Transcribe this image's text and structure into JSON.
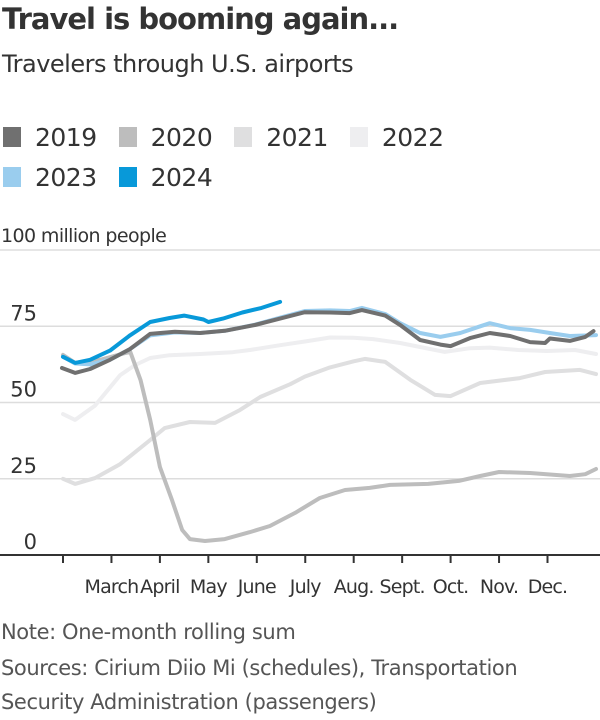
{
  "title": "Travel is booming again...",
  "subtitle": "Travelers through U.S. airports",
  "legend": [
    {
      "label": "2019",
      "color": "#707070"
    },
    {
      "label": "2020",
      "color": "#bdbdbd"
    },
    {
      "label": "2021",
      "color": "#dfdfe0"
    },
    {
      "label": "2022",
      "color": "#eeeef0"
    },
    {
      "label": "2023",
      "color": "#9acdee"
    },
    {
      "label": "2024",
      "color": "#0899d9"
    }
  ],
  "unit_label": "100 million people",
  "note": "Note: One-month rolling sum",
  "sources_line1": "Sources: Cirium Diio Mi (schedules), Transportation",
  "sources_line2": "Security Administration (passengers)",
  "chart_data": {
    "type": "line",
    "title": "Travel is booming again...",
    "subtitle": "Travelers through U.S. airports",
    "ylabel": "100 million people",
    "xlabel": "",
    "ylim": [
      0,
      100
    ],
    "yticks": [
      0,
      25,
      50,
      75,
      100
    ],
    "ytick_labels": [
      "0",
      "25",
      "50",
      "75",
      "100 million people"
    ],
    "x_unit": "month of year (2 = Feb 1, 13 = end of Dec)",
    "xlim": [
      2,
      13
    ],
    "xticks": [
      2,
      3,
      4,
      5,
      6,
      7,
      8,
      9,
      10,
      11,
      12
    ],
    "xtick_labels": [
      "",
      "March",
      "April",
      "May",
      "June",
      "July",
      "Aug.",
      "Sept.",
      "Oct.",
      "Nov.",
      "Dec."
    ],
    "grid": true,
    "legend_position": "top-left",
    "series": [
      {
        "name": "2022",
        "color": "#eeeef0",
        "points": [
          [
            2.0,
            46.2
          ],
          [
            2.25,
            44.3
          ],
          [
            2.66,
            49
          ],
          [
            3.18,
            59
          ],
          [
            3.49,
            62.3
          ],
          [
            3.8,
            64.6
          ],
          [
            4.2,
            65.5
          ],
          [
            4.83,
            65.9
          ],
          [
            5.5,
            66.5
          ],
          [
            5.86,
            67.2
          ],
          [
            6.48,
            68.8
          ],
          [
            6.99,
            70
          ],
          [
            7.51,
            71.3
          ],
          [
            8.0,
            71.2
          ],
          [
            8.4,
            70.8
          ],
          [
            8.96,
            69.5
          ],
          [
            9.37,
            68.2
          ],
          [
            9.88,
            66.6
          ],
          [
            10.4,
            67.8
          ],
          [
            10.81,
            68
          ],
          [
            11.4,
            67.2
          ],
          [
            11.99,
            66.9
          ],
          [
            12.57,
            67.2
          ],
          [
            13.0,
            65.9
          ]
        ]
      },
      {
        "name": "2021",
        "color": "#dfdfe0",
        "points": [
          [
            2.0,
            25
          ],
          [
            2.25,
            23.3
          ],
          [
            2.66,
            25.2
          ],
          [
            3.18,
            29.8
          ],
          [
            3.8,
            37.7
          ],
          [
            4.1,
            41.6
          ],
          [
            4.62,
            43.6
          ],
          [
            5.14,
            43.3
          ],
          [
            5.65,
            47.5
          ],
          [
            6.07,
            51.8
          ],
          [
            6.69,
            56
          ],
          [
            6.99,
            58.5
          ],
          [
            7.51,
            61.5
          ],
          [
            8.0,
            63.5
          ],
          [
            8.23,
            64.3
          ],
          [
            8.65,
            63.3
          ],
          [
            9.17,
            57.4
          ],
          [
            9.68,
            52.5
          ],
          [
            10.0,
            52.1
          ],
          [
            10.61,
            56.4
          ],
          [
            11.43,
            58
          ],
          [
            11.95,
            60
          ],
          [
            12.67,
            60.7
          ],
          [
            13.0,
            59.3
          ]
        ]
      },
      {
        "name": "2020",
        "color": "#bdbdbd",
        "points": [
          [
            2.0,
            65.6
          ],
          [
            2.25,
            63
          ],
          [
            2.77,
            64
          ],
          [
            3.28,
            66.2
          ],
          [
            3.39,
            66.6
          ],
          [
            3.6,
            57.4
          ],
          [
            3.8,
            44.3
          ],
          [
            4.0,
            28.9
          ],
          [
            4.25,
            18
          ],
          [
            4.46,
            8.2
          ],
          [
            4.62,
            5.2
          ],
          [
            4.93,
            4.6
          ],
          [
            5.34,
            5.2
          ],
          [
            5.86,
            7.5
          ],
          [
            6.27,
            9.5
          ],
          [
            6.79,
            13.8
          ],
          [
            7.3,
            18.7
          ],
          [
            7.82,
            21.3
          ],
          [
            8.33,
            22
          ],
          [
            8.75,
            23
          ],
          [
            9.54,
            23.3
          ],
          [
            10.17,
            24.3
          ],
          [
            10.61,
            25.9
          ],
          [
            11.0,
            27.2
          ],
          [
            11.64,
            26.9
          ],
          [
            12.46,
            25.9
          ],
          [
            12.78,
            26.5
          ],
          [
            13.0,
            28.2
          ]
        ]
      },
      {
        "name": "2023",
        "color": "#9acdee",
        "points": [
          [
            2.0,
            65
          ],
          [
            2.25,
            62.8
          ],
          [
            2.56,
            62.5
          ],
          [
            2.97,
            64
          ],
          [
            3.38,
            67.5
          ],
          [
            3.8,
            72
          ],
          [
            4.31,
            73
          ],
          [
            4.83,
            72.8
          ],
          [
            5.34,
            73.5
          ],
          [
            5.96,
            75.5
          ],
          [
            6.48,
            77.8
          ],
          [
            6.99,
            80
          ],
          [
            7.51,
            80.2
          ],
          [
            7.92,
            80
          ],
          [
            8.17,
            81
          ],
          [
            8.65,
            79
          ],
          [
            8.96,
            76
          ],
          [
            9.37,
            72.8
          ],
          [
            9.79,
            71.5
          ],
          [
            10.2,
            72.8
          ],
          [
            10.61,
            75
          ],
          [
            10.81,
            76
          ],
          [
            11.23,
            74.4
          ],
          [
            11.64,
            73.8
          ],
          [
            12.05,
            72.8
          ],
          [
            12.46,
            71.8
          ],
          [
            13.0,
            72.1
          ]
        ]
      },
      {
        "name": "2019",
        "color": "#707070",
        "points": [
          [
            1.98,
            61.3
          ],
          [
            2.25,
            59.7
          ],
          [
            2.56,
            61
          ],
          [
            2.97,
            64
          ],
          [
            3.38,
            67.5
          ],
          [
            3.8,
            72.5
          ],
          [
            4.31,
            73.2
          ],
          [
            4.83,
            72.8
          ],
          [
            5.34,
            73.5
          ],
          [
            5.96,
            75.4
          ],
          [
            6.48,
            77.5
          ],
          [
            6.99,
            79.6
          ],
          [
            7.51,
            79.5
          ],
          [
            7.92,
            79.3
          ],
          [
            8.17,
            80.3
          ],
          [
            8.65,
            78.5
          ],
          [
            8.96,
            75.4
          ],
          [
            9.37,
            70.5
          ],
          [
            9.79,
            69
          ],
          [
            10.0,
            68.5
          ],
          [
            10.4,
            71.1
          ],
          [
            10.81,
            72.8
          ],
          [
            11.23,
            71.8
          ],
          [
            11.64,
            69.8
          ],
          [
            11.95,
            69.5
          ],
          [
            12.05,
            71
          ],
          [
            12.46,
            70.2
          ],
          [
            12.78,
            71.5
          ],
          [
            12.95,
            73.4
          ]
        ]
      },
      {
        "name": "2024",
        "color": "#0899d9",
        "points": [
          [
            2.0,
            65
          ],
          [
            2.25,
            63
          ],
          [
            2.56,
            64
          ],
          [
            2.97,
            67
          ],
          [
            3.38,
            72
          ],
          [
            3.8,
            76.4
          ],
          [
            4.2,
            77.7
          ],
          [
            4.5,
            78.5
          ],
          [
            4.9,
            77.2
          ],
          [
            5.0,
            76.4
          ],
          [
            5.3,
            77.5
          ],
          [
            5.7,
            79.5
          ],
          [
            6.1,
            81
          ],
          [
            6.48,
            83
          ]
        ]
      }
    ]
  }
}
